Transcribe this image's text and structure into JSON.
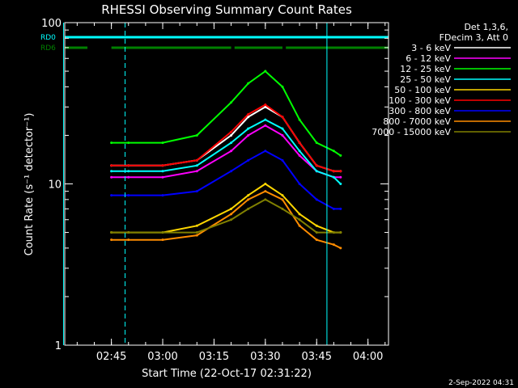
{
  "chart_data": {
    "type": "line",
    "title": "RHESSI Observing Summary Count Rates",
    "xlabel": "Start Time (22-Oct-17 02:31:22)",
    "ylabel": "Count Rate (s⁻¹ detector⁻¹)",
    "x_range": [
      "02:31:22",
      "04:06"
    ],
    "y_scale": "log",
    "ylim": [
      1,
      100
    ],
    "x_ticks": [
      "02:45",
      "03:00",
      "03:15",
      "03:30",
      "03:45",
      "04:00"
    ],
    "y_ticks": [
      "1",
      "10",
      "100"
    ],
    "data_interval": [
      "02:45",
      "03:52"
    ],
    "series": [
      {
        "name": "3 - 6 keV",
        "color": "#000000",
        "x": [
          "02:45",
          "02:50",
          "03:00",
          "03:10",
          "03:20",
          "03:25",
          "03:30",
          "03:35",
          "03:40",
          "03:45",
          "03:50",
          "03:52"
        ],
        "y": [
          13,
          13,
          13,
          14,
          20,
          26,
          30,
          26,
          18,
          13,
          12,
          12
        ]
      },
      {
        "name": "6 - 12 keV",
        "color": "#ff00ff",
        "x": [
          "02:45",
          "02:50",
          "03:00",
          "03:10",
          "03:20",
          "03:25",
          "03:30",
          "03:35",
          "03:40",
          "03:45",
          "03:50",
          "03:52"
        ],
        "y": [
          11,
          11,
          11,
          12,
          16,
          20,
          23,
          20,
          15,
          12,
          11,
          11
        ]
      },
      {
        "name": "12 - 25 keV",
        "color": "#00ff00",
        "x": [
          "02:45",
          "02:50",
          "03:00",
          "03:10",
          "03:20",
          "03:25",
          "03:30",
          "03:35",
          "03:40",
          "03:45",
          "03:50",
          "03:52"
        ],
        "y": [
          18,
          18,
          18,
          20,
          32,
          42,
          50,
          40,
          25,
          18,
          16,
          15
        ]
      },
      {
        "name": "25 - 50 keV",
        "color": "#00ffff",
        "x": [
          "02:45",
          "02:50",
          "03:00",
          "03:10",
          "03:20",
          "03:25",
          "03:30",
          "03:35",
          "03:40",
          "03:45",
          "03:50",
          "03:52"
        ],
        "y": [
          12,
          12,
          12,
          13,
          18,
          22,
          25,
          22,
          16,
          12,
          11,
          10
        ]
      },
      {
        "name": "50 - 100 keV",
        "color": "#ffd700",
        "x": [
          "02:45",
          "02:50",
          "03:00",
          "03:10",
          "03:20",
          "03:25",
          "03:30",
          "03:35",
          "03:40",
          "03:45",
          "03:50",
          "03:52"
        ],
        "y": [
          5,
          5,
          5,
          5.5,
          7,
          8.5,
          10,
          8.5,
          6.5,
          5.5,
          5,
          5
        ]
      },
      {
        "name": "100 - 300 keV",
        "color": "#ff0000",
        "x": [
          "02:45",
          "02:50",
          "03:00",
          "03:10",
          "03:20",
          "03:25",
          "03:30",
          "03:35",
          "03:40",
          "03:45",
          "03:50",
          "03:52"
        ],
        "y": [
          13,
          13,
          13,
          14,
          21,
          27,
          31,
          26,
          18,
          13,
          12,
          12
        ]
      },
      {
        "name": "300 - 800 keV",
        "color": "#0000ff",
        "x": [
          "02:45",
          "02:50",
          "03:00",
          "03:10",
          "03:20",
          "03:25",
          "03:30",
          "03:35",
          "03:40",
          "03:45",
          "03:50",
          "03:52"
        ],
        "y": [
          8.5,
          8.5,
          8.5,
          9,
          12,
          14,
          16,
          14,
          10,
          8,
          7,
          7
        ]
      },
      {
        "name": "800 - 7000 keV",
        "color": "#ff8c00",
        "x": [
          "02:45",
          "02:50",
          "03:00",
          "03:10",
          "03:20",
          "03:25",
          "03:30",
          "03:35",
          "03:40",
          "03:45",
          "03:50",
          "03:52"
        ],
        "y": [
          4.5,
          4.5,
          4.5,
          4.8,
          6.5,
          8,
          9,
          8,
          5.5,
          4.5,
          4.2,
          4
        ]
      },
      {
        "name": "7000 - 15000 keV",
        "color": "#808000",
        "x": [
          "02:45",
          "02:50",
          "03:00",
          "03:10",
          "03:20",
          "03:25",
          "03:30",
          "03:35",
          "03:40",
          "03:45",
          "03:50",
          "03:52"
        ],
        "y": [
          5,
          5,
          5,
          5,
          6,
          7,
          8,
          7,
          6,
          5,
          5,
          5
        ]
      }
    ],
    "legend": {
      "placement": "right",
      "header": [
        "Det 1,3,6,",
        "FDecim 3, Att 0"
      ]
    },
    "flags": [
      {
        "label": "RD0",
        "color": "#00ffff",
        "intervals": [
          [
            "02:31",
            "04:06"
          ]
        ]
      },
      {
        "label": "RD6",
        "color": "#008000",
        "intervals": [
          [
            "02:31",
            "02:38"
          ],
          [
            "02:45",
            "03:20"
          ],
          [
            "03:21",
            "03:35"
          ],
          [
            "03:36",
            "04:06"
          ]
        ]
      }
    ],
    "vertical_lines": [
      {
        "time": "02:31",
        "style": "solid",
        "color": "#00ffff"
      },
      {
        "time": "02:49",
        "style": "dashed",
        "color": "#00ffff"
      },
      {
        "time": "03:48",
        "style": "solid",
        "color": "#00ffff"
      },
      {
        "time": "04:06",
        "style": "dashed",
        "color": "#00ffff"
      }
    ],
    "annotations": [
      "2-Sep-2022 04:31"
    ]
  }
}
